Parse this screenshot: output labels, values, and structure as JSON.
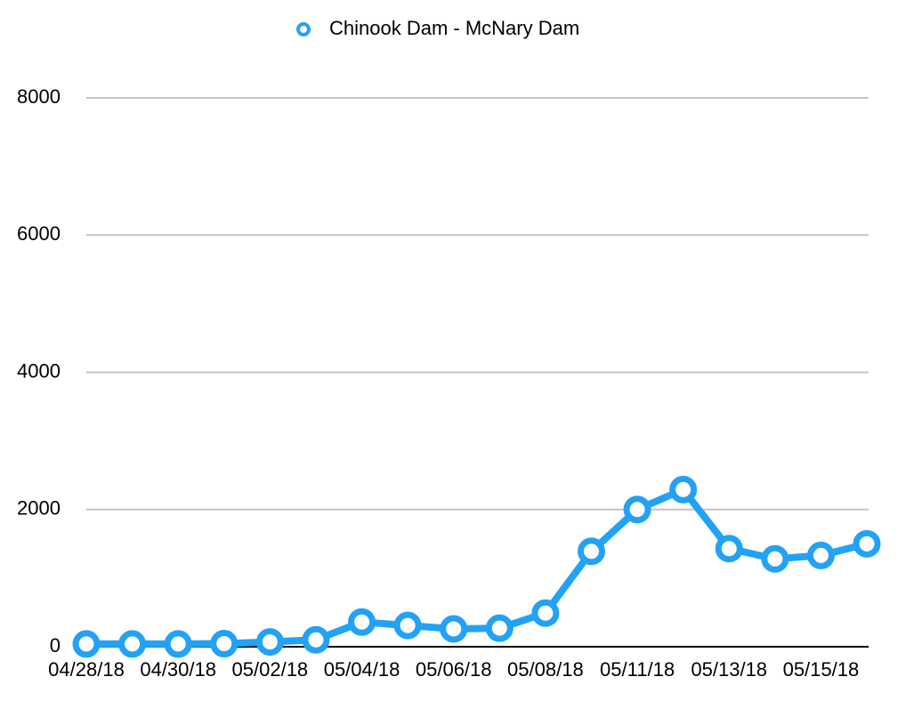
{
  "chart_data": {
    "type": "line",
    "categories": [
      "04/28/18",
      null,
      "04/30/18",
      null,
      "05/02/18",
      null,
      "05/04/18",
      null,
      "05/06/18",
      null,
      "05/08/18",
      null,
      "05/11/18",
      null,
      "05/13/18",
      null,
      "05/15/18",
      null
    ],
    "series": [
      {
        "name": "Chinook Dam - McNary Dam",
        "color": "#22a2f5",
        "values": [
          40,
          40,
          40,
          45,
          70,
          100,
          360,
          310,
          260,
          270,
          490,
          1390,
          2000,
          2290,
          1430,
          1280,
          1330,
          1500
        ]
      }
    ],
    "ylim": [
      0,
      8000
    ],
    "yticks": [
      0,
      2000,
      4000,
      6000,
      8000
    ],
    "grid": true,
    "legend": "top"
  }
}
